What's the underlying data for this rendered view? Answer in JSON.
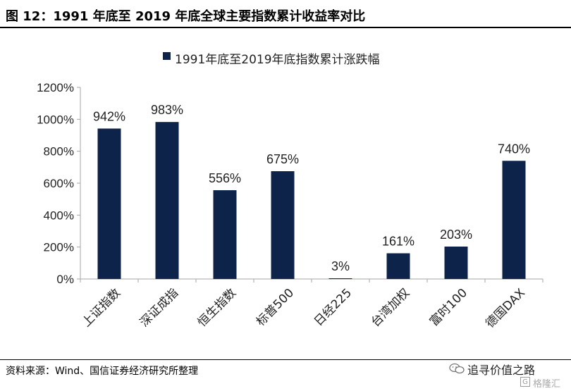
{
  "figure": {
    "title": "图 12：1991 年底至 2019 年底全球主要指数累计收益率对比",
    "source": "资料来源：Wind、国信证券经济研究所整理"
  },
  "watermark": {
    "text": "追寻价值之路",
    "icon": "wechat-icon",
    "badge_glyph": "G",
    "badge_text": "格隆汇"
  },
  "colors": {
    "bar": "#0e234a",
    "axis": "#a6a6a6",
    "text": "#222222"
  },
  "chart_data": {
    "type": "bar",
    "categories": [
      "上证指数",
      "深证成指",
      "恒生指数",
      "标普500",
      "日经225",
      "台湾加权",
      "富时100",
      "德国DAX"
    ],
    "series": [
      {
        "name": "1991年底至2019年底指数累计涨跌幅",
        "values": [
          942,
          983,
          556,
          675,
          3,
          161,
          203,
          740
        ]
      }
    ],
    "data_labels": [
      "942%",
      "983%",
      "556%",
      "675%",
      "3%",
      "161%",
      "203%",
      "740%"
    ],
    "ylim": [
      0,
      1200
    ],
    "yticks": [
      0,
      200,
      400,
      600,
      800,
      1000,
      1200
    ],
    "ytick_labels": [
      "0%",
      "200%",
      "400%",
      "600%",
      "800%",
      "1000%",
      "1200%"
    ],
    "legend_position": "top-center",
    "grid": false
  }
}
